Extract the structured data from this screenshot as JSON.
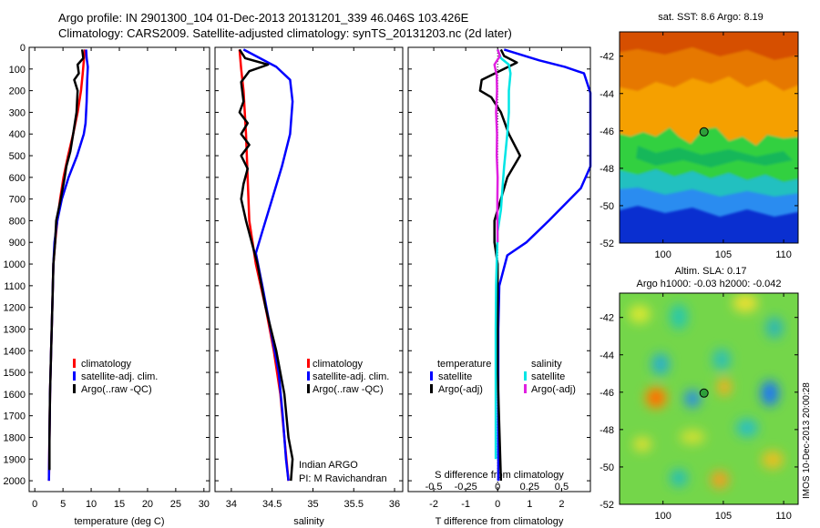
{
  "header": {
    "title_line1": "Argo profile: IN 2901300_104 01-Dec-2013 20131201_339 46.046S 103.426E",
    "title_line2": "Climatology: CARS2009. Satellite-adjusted climatology: synTS_20131203.nc (2d later)"
  },
  "maps": {
    "sst_title": "sat. SST: 8.6 Argo: 8.19",
    "sla_title1": "Altim. SLA: 0.17",
    "sla_title2": "Argo h1000: -0.03 h2000: -0.042",
    "side_label": "IMOS 10-Dec-2013 20:00:28",
    "x_ticks": [
      "100",
      "105",
      "110"
    ],
    "sst_y_ticks": [
      "-42",
      "-44",
      "-46",
      "-48",
      "-50",
      "-52"
    ],
    "sla_y_ticks": [
      "-42",
      "-44",
      "-46",
      "-48",
      "-50",
      "-52"
    ],
    "float_marker": {
      "lon": 103.4,
      "lat": -46.05
    }
  },
  "colors": {
    "climatology": "#ff0000",
    "satellite": "#0000ff",
    "argo": "#000000",
    "satellite_salinity": "#00e5e5",
    "argo_salinity": "#e020e0",
    "zero_line": "#000000"
  },
  "chart_data": [
    {
      "type": "line",
      "title": "",
      "xlabel": "temperature (deg C)",
      "ylabel": "",
      "xlim": [
        -1,
        31
      ],
      "ylim": [
        0,
        2050
      ],
      "y_reversed": true,
      "x_ticks": [
        0,
        5,
        10,
        15,
        20,
        25,
        30
      ],
      "y_ticks": [
        0,
        100,
        200,
        300,
        400,
        500,
        600,
        700,
        800,
        900,
        1000,
        1100,
        1200,
        1300,
        1400,
        1500,
        1600,
        1700,
        1800,
        1900,
        2000
      ],
      "legend": [
        "climatology",
        "satellite-adj. clim.",
        "Argo(..raw -QC)"
      ],
      "series": [
        {
          "name": "climatology",
          "color": "climatology",
          "points": [
            [
              8.9,
              10
            ],
            [
              8.7,
              60
            ],
            [
              8.5,
              120
            ],
            [
              8.2,
              200
            ],
            [
              7.6,
              300
            ],
            [
              6.8,
              400
            ],
            [
              5.9,
              500
            ],
            [
              5.1,
              600
            ],
            [
              4.5,
              700
            ],
            [
              4.0,
              800
            ],
            [
              3.6,
              900
            ],
            [
              3.3,
              1000
            ],
            [
              3.1,
              1200
            ],
            [
              2.9,
              1400
            ],
            [
              2.7,
              1600
            ],
            [
              2.6,
              1800
            ],
            [
              2.5,
              2000
            ]
          ]
        },
        {
          "name": "satellite-adj. clim.",
          "color": "satellite",
          "points": [
            [
              9.1,
              10
            ],
            [
              9.2,
              50
            ],
            [
              9.4,
              90
            ],
            [
              9.3,
              150
            ],
            [
              9.2,
              250
            ],
            [
              9.0,
              350
            ],
            [
              8.7,
              400
            ],
            [
              7.5,
              500
            ],
            [
              6.0,
              600
            ],
            [
              4.8,
              700
            ],
            [
              4.0,
              800
            ],
            [
              3.5,
              900
            ],
            [
              3.3,
              1000
            ],
            [
              3.1,
              1200
            ],
            [
              2.9,
              1400
            ],
            [
              2.7,
              1600
            ],
            [
              2.6,
              1800
            ],
            [
              2.5,
              2000
            ]
          ]
        },
        {
          "name": "Argo(..raw -QC)",
          "color": "argo",
          "points": [
            [
              8.4,
              10
            ],
            [
              8.6,
              50
            ],
            [
              7.6,
              80
            ],
            [
              7.8,
              120
            ],
            [
              7.0,
              150
            ],
            [
              7.6,
              200
            ],
            [
              7.4,
              300
            ],
            [
              6.8,
              400
            ],
            [
              6.3,
              480
            ],
            [
              5.6,
              550
            ],
            [
              5.3,
              600
            ],
            [
              4.6,
              700
            ],
            [
              4.2,
              750
            ],
            [
              3.8,
              800
            ],
            [
              3.6,
              900
            ],
            [
              3.3,
              1000
            ],
            [
              3.1,
              1200
            ],
            [
              2.9,
              1400
            ],
            [
              2.7,
              1600
            ],
            [
              2.6,
              1800
            ],
            [
              2.6,
              1950
            ]
          ]
        }
      ]
    },
    {
      "type": "line",
      "title": "",
      "xlabel": "salinity",
      "ylabel": "",
      "xlim": [
        33.8,
        36.1
      ],
      "ylim": [
        0,
        2050
      ],
      "y_reversed": true,
      "x_ticks": [
        34,
        34.5,
        35,
        35.5,
        36
      ],
      "legend": [
        "climatology",
        "satellite-adj. clim.",
        "Argo(..raw -QC)"
      ],
      "annotations": [
        "Indian ARGO",
        "PI: M Ravichandran"
      ],
      "series": [
        {
          "name": "climatology",
          "color": "climatology",
          "points": [
            [
              34.1,
              10
            ],
            [
              34.12,
              100
            ],
            [
              34.15,
              200
            ],
            [
              34.18,
              400
            ],
            [
              34.2,
              600
            ],
            [
              34.22,
              800
            ],
            [
              34.3,
              1000
            ],
            [
              34.42,
              1200
            ],
            [
              34.52,
              1400
            ],
            [
              34.6,
              1600
            ],
            [
              34.65,
              1800
            ],
            [
              34.7,
              2000
            ]
          ]
        },
        {
          "name": "satellite-adj. clim.",
          "color": "satellite",
          "points": [
            [
              34.15,
              10
            ],
            [
              34.55,
              90
            ],
            [
              34.72,
              150
            ],
            [
              34.75,
              250
            ],
            [
              34.72,
              400
            ],
            [
              34.62,
              550
            ],
            [
              34.5,
              700
            ],
            [
              34.38,
              850
            ],
            [
              34.3,
              950
            ],
            [
              34.38,
              1100
            ],
            [
              34.48,
              1300
            ],
            [
              34.58,
              1500
            ],
            [
              34.63,
              1700
            ],
            [
              34.67,
              1900
            ],
            [
              34.7,
              2000
            ]
          ]
        },
        {
          "name": "Argo(..raw -QC)",
          "color": "argo",
          "points": [
            [
              34.1,
              10
            ],
            [
              34.17,
              50
            ],
            [
              34.45,
              80
            ],
            [
              34.22,
              110
            ],
            [
              34.12,
              160
            ],
            [
              34.15,
              250
            ],
            [
              34.1,
              300
            ],
            [
              34.2,
              350
            ],
            [
              34.12,
              400
            ],
            [
              34.22,
              450
            ],
            [
              34.12,
              500
            ],
            [
              34.2,
              560
            ],
            [
              34.15,
              630
            ],
            [
              34.12,
              700
            ],
            [
              34.18,
              800
            ],
            [
              34.25,
              900
            ],
            [
              34.32,
              1000
            ],
            [
              34.42,
              1200
            ],
            [
              34.55,
              1400
            ],
            [
              34.65,
              1600
            ],
            [
              34.7,
              1800
            ],
            [
              34.75,
              1900
            ],
            [
              34.73,
              2000
            ]
          ]
        }
      ]
    },
    {
      "type": "line",
      "title": "",
      "xlabel": "T difference from climatology",
      "ylabel": "",
      "xlim": [
        -2.8,
        2.9
      ],
      "ylim": [
        0,
        2050
      ],
      "y_reversed": true,
      "x_ticks": [
        -2,
        -1,
        0,
        1,
        2
      ],
      "secondary_xlabel": "S difference from climatology",
      "secondary_xlim": [
        -0.7,
        0.725
      ],
      "secondary_x_ticks": [
        "-0.5",
        "-0.25",
        "0",
        "0.25",
        "0.5"
      ],
      "legend_titles": [
        "temperature",
        "salinity"
      ],
      "legend": [
        "satellite",
        "Argo(-adj)",
        "satellite",
        "Argo(-adj)"
      ],
      "series": [
        {
          "name": "satellite",
          "quantity": "temperature",
          "color": "satellite",
          "points": [
            [
              0.2,
              10
            ],
            [
              1.3,
              60
            ],
            [
              2.1,
              90
            ],
            [
              2.7,
              120
            ],
            [
              2.9,
              210
            ],
            [
              2.9,
              550
            ],
            [
              2.6,
              650
            ],
            [
              1.6,
              800
            ],
            [
              0.9,
              900
            ],
            [
              0.3,
              960
            ],
            [
              0.05,
              1100
            ],
            [
              0.02,
              1300
            ],
            [
              0.02,
              1600
            ],
            [
              0.02,
              2000
            ]
          ]
        },
        {
          "name": "Argo(-adj)",
          "quantity": "temperature",
          "color": "argo",
          "points": [
            [
              0.1,
              10
            ],
            [
              0.2,
              40
            ],
            [
              0.6,
              70
            ],
            [
              -0.5,
              150
            ],
            [
              -0.55,
              200
            ],
            [
              -0.2,
              230
            ],
            [
              0.1,
              300
            ],
            [
              0.35,
              400
            ],
            [
              0.7,
              500
            ],
            [
              0.3,
              600
            ],
            [
              0.1,
              700
            ],
            [
              -0.1,
              800
            ],
            [
              -0.1,
              900
            ],
            [
              0.0,
              1000
            ],
            [
              0.0,
              1500
            ],
            [
              0.1,
              2000
            ]
          ]
        },
        {
          "name": "satellite",
          "quantity": "salinity",
          "color": "satellite_salinity",
          "points": [
            [
              0.0,
              10
            ],
            [
              0.1,
              50
            ],
            [
              0.35,
              80
            ],
            [
              0.4,
              120
            ],
            [
              0.35,
              200
            ],
            [
              0.35,
              300
            ],
            [
              0.3,
              400
            ],
            [
              0.2,
              550
            ],
            [
              0.15,
              650
            ],
            [
              0.1,
              750
            ],
            [
              0.0,
              850
            ],
            [
              -0.02,
              950
            ],
            [
              -0.05,
              1100
            ],
            [
              -0.06,
              1300
            ],
            [
              -0.06,
              1600
            ],
            [
              -0.06,
              1900
            ]
          ]
        },
        {
          "name": "Argo(-adj)",
          "quantity": "salinity",
          "color": "argo_salinity",
          "points": [
            [
              0.0,
              10
            ],
            [
              0.07,
              40
            ],
            [
              -0.1,
              80
            ],
            [
              -0.03,
              130
            ],
            [
              -0.02,
              200
            ],
            [
              -0.05,
              300
            ],
            [
              -0.02,
              400
            ],
            [
              -0.03,
              500
            ],
            [
              0.0,
              600
            ],
            [
              -0.01,
              700
            ],
            [
              -0.01,
              800
            ],
            [
              0.0,
              900
            ]
          ]
        }
      ]
    }
  ]
}
